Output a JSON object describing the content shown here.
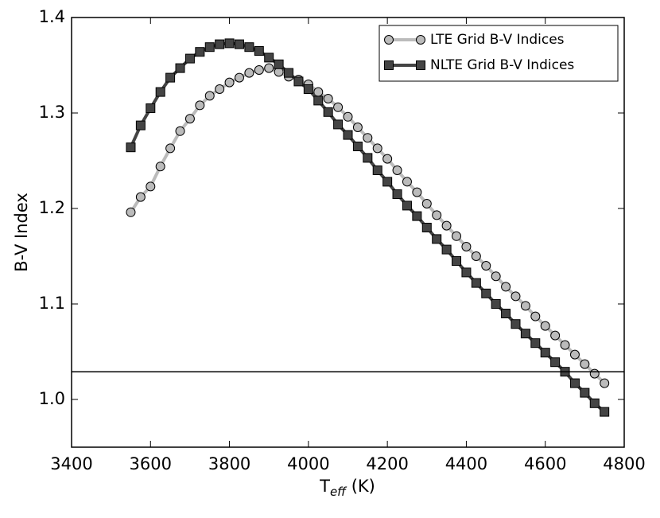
{
  "chart_data": {
    "type": "line",
    "xlabel": {
      "main": "T",
      "sub": "eff",
      "suffix": " (K)"
    },
    "ylabel": "B-V Index",
    "x": [
      3550,
      3575,
      3600,
      3625,
      3650,
      3675,
      3700,
      3725,
      3750,
      3775,
      3800,
      3825,
      3850,
      3875,
      3900,
      3925,
      3950,
      3975,
      4000,
      4025,
      4050,
      4075,
      4100,
      4125,
      4150,
      4175,
      4200,
      4225,
      4250,
      4275,
      4300,
      4325,
      4350,
      4375,
      4400,
      4425,
      4450,
      4475,
      4500,
      4525,
      4550,
      4575,
      4600,
      4625,
      4650,
      4675,
      4700,
      4725,
      4750
    ],
    "series": [
      {
        "name": "LTE Grid B-V Indices",
        "color": "#bbbbbb",
        "marker": "circle",
        "values": [
          1.196,
          1.212,
          1.223,
          1.244,
          1.263,
          1.281,
          1.294,
          1.308,
          1.318,
          1.325,
          1.332,
          1.337,
          1.342,
          1.345,
          1.347,
          1.343,
          1.338,
          1.335,
          1.33,
          1.322,
          1.315,
          1.306,
          1.296,
          1.285,
          1.274,
          1.263,
          1.252,
          1.24,
          1.228,
          1.217,
          1.205,
          1.193,
          1.182,
          1.171,
          1.16,
          1.15,
          1.14,
          1.129,
          1.118,
          1.108,
          1.098,
          1.087,
          1.077,
          1.067,
          1.057,
          1.047,
          1.037,
          1.027,
          1.017
        ]
      },
      {
        "name": "NLTE Grid B-V Indices",
        "color": "#444444",
        "marker": "square",
        "values": [
          1.264,
          1.287,
          1.305,
          1.322,
          1.337,
          1.347,
          1.357,
          1.364,
          1.369,
          1.372,
          1.373,
          1.372,
          1.369,
          1.365,
          1.358,
          1.351,
          1.342,
          1.333,
          1.325,
          1.313,
          1.301,
          1.288,
          1.277,
          1.265,
          1.253,
          1.24,
          1.228,
          1.215,
          1.203,
          1.192,
          1.18,
          1.168,
          1.157,
          1.145,
          1.133,
          1.122,
          1.111,
          1.1,
          1.09,
          1.079,
          1.069,
          1.059,
          1.049,
          1.039,
          1.029,
          1.017,
          1.007,
          0.996,
          0.987
        ]
      }
    ],
    "hline": 1.029,
    "xlim": [
      3400,
      4800
    ],
    "xticks": [
      3400,
      3600,
      3800,
      4000,
      4200,
      4400,
      4600,
      4800
    ],
    "ylim": [
      0.95,
      1.4
    ],
    "yticks": [
      {
        "value": 1,
        "label": "1.0"
      },
      1.1,
      1.2,
      1.3,
      1.4
    ],
    "legend": "upper right",
    "grid": false
  }
}
